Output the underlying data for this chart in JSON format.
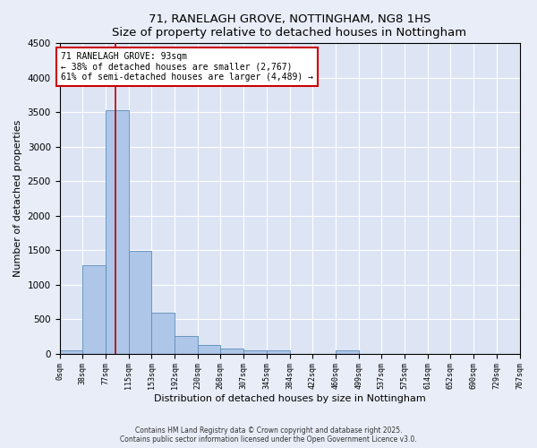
{
  "title": "71, RANELAGH GROVE, NOTTINGHAM, NG8 1HS",
  "subtitle": "Size of property relative to detached houses in Nottingham",
  "xlabel": "Distribution of detached houses by size in Nottingham",
  "ylabel": "Number of detached properties",
  "bin_edges": [
    0,
    38,
    77,
    115,
    153,
    192,
    230,
    268,
    307,
    345,
    384,
    422,
    460,
    499,
    537,
    575,
    614,
    652,
    690,
    729,
    767
  ],
  "bar_heights": [
    50,
    1280,
    3530,
    1490,
    600,
    250,
    120,
    80,
    50,
    50,
    0,
    0,
    50,
    0,
    0,
    0,
    0,
    0,
    0,
    0
  ],
  "bar_color": "#aec6e8",
  "bar_edgecolor": "#5b8db8",
  "property_size": 93,
  "vline_color": "#bb0000",
  "annotation_line1": "71 RANELAGH GROVE: 93sqm",
  "annotation_line2": "← 38% of detached houses are smaller (2,767)",
  "annotation_line3": "61% of semi-detached houses are larger (4,489) →",
  "annotation_box_edgecolor": "#cc0000",
  "annotation_box_facecolor": "#ffffff",
  "ylim": [
    0,
    4500
  ],
  "fig_facecolor": "#e8edf8",
  "ax_facecolor": "#dde5f5",
  "grid_color": "#ffffff",
  "footer_line1": "Contains HM Land Registry data © Crown copyright and database right 2025.",
  "footer_line2": "Contains public sector information licensed under the Open Government Licence v3.0.",
  "tick_labels": [
    "0sqm",
    "38sqm",
    "77sqm",
    "115sqm",
    "153sqm",
    "192sqm",
    "230sqm",
    "268sqm",
    "307sqm",
    "345sqm",
    "384sqm",
    "422sqm",
    "460sqm",
    "499sqm",
    "537sqm",
    "575sqm",
    "614sqm",
    "652sqm",
    "690sqm",
    "729sqm",
    "767sqm"
  ]
}
